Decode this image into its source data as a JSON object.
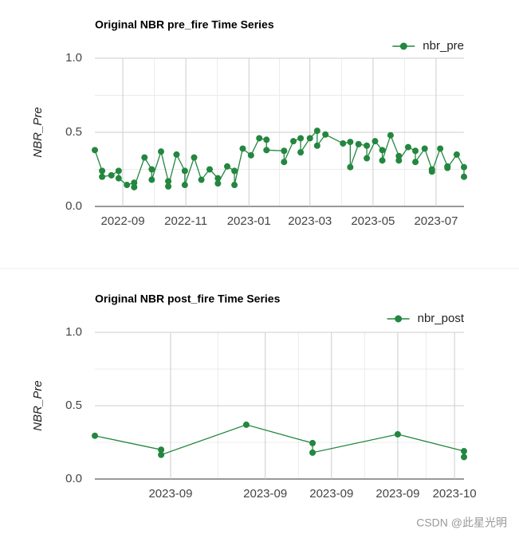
{
  "chart_data": [
    {
      "type": "line",
      "title": "Original NBR pre_fire Time Series",
      "y_label": "NBR_Pre",
      "xlim": [
        "2022-08-05",
        "2023-07-28"
      ],
      "xticks": [
        {
          "value": "2022-09-01",
          "label": "2022-09"
        },
        {
          "value": "2022-11-01",
          "label": "2022-11"
        },
        {
          "value": "2023-01-01",
          "label": "2023-01"
        },
        {
          "value": "2023-03-01",
          "label": "2023-03"
        },
        {
          "value": "2023-05-01",
          "label": "2023-05"
        },
        {
          "value": "2023-07-01",
          "label": "2023-07"
        }
      ],
      "ylim": [
        0,
        1
      ],
      "yticks": [
        {
          "value": 0,
          "label": "0.0"
        },
        {
          "value": 0.5,
          "label": "0.5"
        },
        {
          "value": 1,
          "label": "1.0"
        }
      ],
      "grid": true,
      "legend": "top-right",
      "x": [
        "2022-08-05",
        "2022-08-12",
        "2022-08-12",
        "2022-08-21",
        "2022-08-28",
        "2022-08-28",
        "2022-09-05",
        "2022-09-12",
        "2022-09-12",
        "2022-09-22",
        "2022-09-29",
        "2022-09-29",
        "2022-10-08",
        "2022-10-15",
        "2022-10-15",
        "2022-10-23",
        "2022-10-31",
        "2022-10-31",
        "2022-11-09",
        "2022-11-16",
        "2022-11-24",
        "2022-12-02",
        "2022-12-02",
        "2022-12-11",
        "2022-12-18",
        "2022-12-18",
        "2022-12-26",
        "2023-01-03",
        "2023-01-11",
        "2023-01-18",
        "2023-01-18",
        "2023-02-04",
        "2023-02-04",
        "2023-02-13",
        "2023-02-20",
        "2023-02-20",
        "2023-03-01",
        "2023-03-08",
        "2023-03-08",
        "2023-03-16",
        "2023-04-02",
        "2023-04-09",
        "2023-04-09",
        "2023-04-17",
        "2023-04-25",
        "2023-04-25",
        "2023-05-03",
        "2023-05-10",
        "2023-05-10",
        "2023-05-18",
        "2023-05-26",
        "2023-05-26",
        "2023-06-04",
        "2023-06-11",
        "2023-06-11",
        "2023-06-20",
        "2023-06-27",
        "2023-06-27",
        "2023-07-05",
        "2023-07-12",
        "2023-07-12",
        "2023-07-21",
        "2023-07-28",
        "2023-07-28"
      ],
      "series": [
        {
          "name": "nbr_pre",
          "color": "#23873f",
          "values": [
            0.38,
            0.24,
            0.2,
            0.21,
            0.24,
            0.19,
            0.145,
            0.16,
            0.13,
            0.33,
            0.25,
            0.18,
            0.37,
            0.17,
            0.135,
            0.35,
            0.24,
            0.145,
            0.33,
            0.18,
            0.25,
            0.19,
            0.155,
            0.27,
            0.24,
            0.145,
            0.39,
            0.345,
            0.46,
            0.45,
            0.38,
            0.375,
            0.3,
            0.44,
            0.46,
            0.365,
            0.46,
            0.51,
            0.41,
            0.485,
            0.425,
            0.435,
            0.265,
            0.42,
            0.41,
            0.325,
            0.44,
            0.38,
            0.31,
            0.48,
            0.34,
            0.31,
            0.4,
            0.375,
            0.3,
            0.39,
            0.25,
            0.235,
            0.39,
            0.27,
            0.26,
            0.35,
            0.265,
            0.2
          ]
        }
      ]
    },
    {
      "type": "line",
      "title": "Original NBR post_fire Time Series",
      "y_label": "NBR_Pre",
      "xlim": [
        "2023-08-24",
        "2023-10-02"
      ],
      "xticks": [
        {
          "value": "2023-09-01",
          "label": "2023-09"
        },
        {
          "value": "2023-09-11",
          "label": "2023-09"
        },
        {
          "value": "2023-09-18",
          "label": "2023-09"
        },
        {
          "value": "2023-09-25",
          "label": "2023-09"
        },
        {
          "value": "2023-10-01",
          "label": "2023-10"
        }
      ],
      "ylim": [
        0,
        1
      ],
      "yticks": [
        {
          "value": 0,
          "label": "0.0"
        },
        {
          "value": 0.5,
          "label": "0.5"
        },
        {
          "value": 1,
          "label": "1.0"
        }
      ],
      "grid": true,
      "legend": "top-right",
      "x": [
        "2023-08-24",
        "2023-08-31",
        "2023-08-31",
        "2023-09-09",
        "2023-09-16",
        "2023-09-16",
        "2023-09-25",
        "2023-10-02",
        "2023-10-02"
      ],
      "series": [
        {
          "name": "nbr_post",
          "color": "#23873f",
          "values": [
            0.295,
            0.2,
            0.165,
            0.37,
            0.245,
            0.18,
            0.305,
            0.19,
            0.15
          ]
        }
      ]
    }
  ],
  "watermark": "CSDN @此星光明"
}
